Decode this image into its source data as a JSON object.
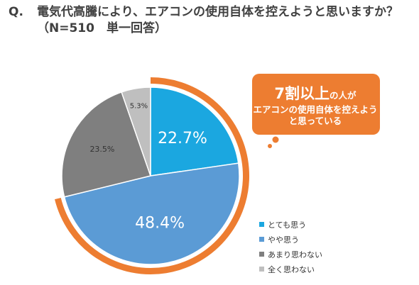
{
  "title": {
    "prefix": "Q.",
    "line1": "電気代高騰により、エアコンの使用自体を控えようと思いますか？",
    "line2": "（N=510　単一回答）"
  },
  "chart_data": {
    "type": "pie",
    "categories": [
      "とても思う",
      "やや思う",
      "あまり思わない",
      "全く思わない"
    ],
    "values": [
      22.7,
      48.4,
      23.5,
      5.3
    ],
    "labels": [
      "22.7%",
      "48.4%",
      "23.5%",
      "5.3%"
    ],
    "colors": [
      "#1ba7e0",
      "#5b9bd5",
      "#7f7f7f",
      "#bfbfbf"
    ],
    "highlight_color": "#ed7d31",
    "legend_position": "bottom-right"
  },
  "callout": {
    "big": "7割以上",
    "small": "の人が",
    "body": "エアコンの使用自体を控えようと思っている",
    "color": "#ed7d31"
  }
}
